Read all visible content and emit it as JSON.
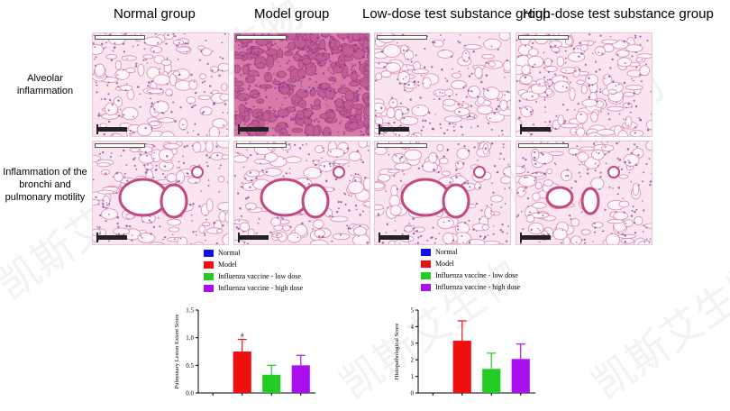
{
  "columns": [
    {
      "title": "Normal group"
    },
    {
      "title": "Model group"
    },
    {
      "title": "Low-dose test substance group"
    },
    {
      "title": "High-dose test substance group"
    }
  ],
  "rows": [
    {
      "label": "Alveolar inflammation"
    },
    {
      "label": "Inflammation of the bronchi and pulmonary motility"
    }
  ],
  "legend": [
    {
      "name": "Normal",
      "color": "#1010ee"
    },
    {
      "name": "Model",
      "color": "#ee1010"
    },
    {
      "name": "Influenza vaccine - low dose",
      "color": "#22cc22"
    },
    {
      "name": "Influenza vaccine - high dose",
      "color": "#aa10ee"
    }
  ],
  "watermark": "凯斯艾生物",
  "chart_data": [
    {
      "type": "bar",
      "ylabel": "Pulmonary Lesion Extent Score",
      "ylim": [
        0,
        1.5
      ],
      "yticks": [
        "0.0",
        "0.5",
        "1.0",
        "1.5"
      ],
      "series": [
        {
          "name": "Normal",
          "value": 0.0,
          "error": 0.0,
          "color": "#1010ee"
        },
        {
          "name": "Model",
          "value": 0.75,
          "error": 0.22,
          "color": "#ee1010",
          "annotation": "#"
        },
        {
          "name": "Influenza vaccine - low dose",
          "value": 0.33,
          "error": 0.17,
          "color": "#22cc22"
        },
        {
          "name": "Influenza vaccine - high dose",
          "value": 0.5,
          "error": 0.18,
          "color": "#aa10ee"
        }
      ]
    },
    {
      "type": "bar",
      "ylabel": "Histopathological Score",
      "ylim": [
        0,
        5
      ],
      "yticks": [
        "0",
        "1",
        "2",
        "3",
        "4",
        "5"
      ],
      "series": [
        {
          "name": "Normal",
          "value": 0.0,
          "error": 0.0,
          "color": "#1010ee"
        },
        {
          "name": "Model",
          "value": 3.15,
          "error": 1.2,
          "color": "#ee1010"
        },
        {
          "name": "Influenza vaccine - low dose",
          "value": 1.45,
          "error": 0.95,
          "color": "#22cc22"
        },
        {
          "name": "Influenza vaccine - high dose",
          "value": 2.05,
          "error": 0.9,
          "color": "#aa10ee"
        }
      ]
    }
  ]
}
